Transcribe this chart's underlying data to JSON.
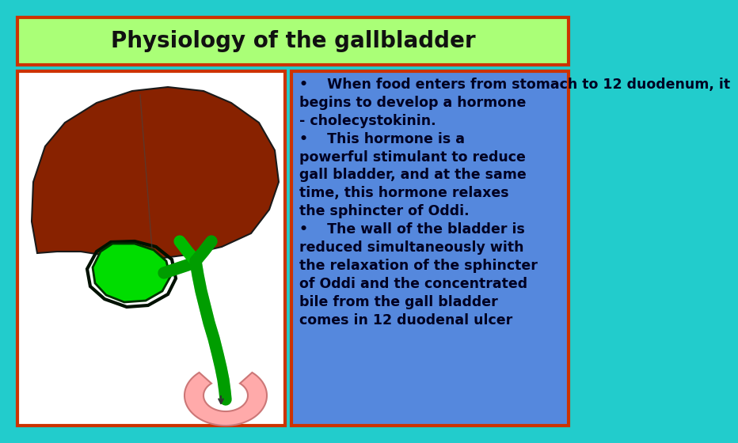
{
  "title": "Physiology of the gallbladder",
  "title_fontsize": 20,
  "title_bg_color": "#aaff77",
  "title_border_color": "#cc3300",
  "background_color": "#22cccc",
  "left_box_border_color": "#cc3300",
  "left_box_bg_color": "#ffffff",
  "right_box_border_color": "#cc3300",
  "right_box_bg_color": "#5588dd",
  "text_color": "#000022",
  "bullet1": "•    When food enters from stomach to 12 duodenum, it\nbegins to develop a hormone\n- cholecystokinin.",
  "bullet2": "•    This hormone is a\npowerful stimulant to reduce\ngall bladder, and at the same\ntime, this hormone relaxes\nthe sphincter of Oddi.",
  "bullet3": "•    The wall of the bladder is\nreduced simultaneously with\nthe relaxation of the sphincter\nof Oddi and the concentrated\nbile from the gall bladder\ncomes in 12 duodenal ulcer",
  "bullet_fontsize": 12.5,
  "liver_color": "#882200",
  "gallbladder_color": "#00dd00",
  "duct_color": "#00bb00",
  "duct_dark": "#004400",
  "duodenum_color": "#ffaaaa",
  "duodenum_outline": "#cc7777"
}
